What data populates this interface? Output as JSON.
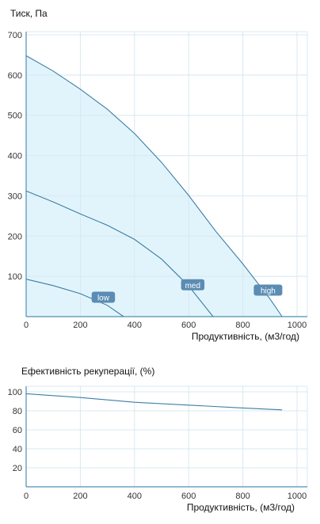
{
  "colors": {
    "curve": "#3a7fa5",
    "fill": "#e2f4fb",
    "grid": "#d8e8f0",
    "axis": "#4d8fb5",
    "label_bg": "#5b8cb3",
    "label_text": "#ffffff",
    "tick_text": "#333333"
  },
  "chart_data": [
    {
      "type": "line",
      "ylabel": "Тиск, Па",
      "xlabel": "Продуктивність, (м3/год)",
      "xlim": [
        0,
        1000
      ],
      "ylim": [
        0,
        700
      ],
      "xticks": [
        0,
        200,
        400,
        600,
        800,
        1000
      ],
      "yticks": [
        100,
        200,
        300,
        400,
        500,
        600,
        700
      ],
      "grid": true,
      "series": [
        {
          "name": "high",
          "points": [
            [
              0,
              648
            ],
            [
              100,
              610
            ],
            [
              200,
              565
            ],
            [
              300,
              515
            ],
            [
              400,
              455
            ],
            [
              500,
              383
            ],
            [
              600,
              301
            ],
            [
              700,
              212
            ],
            [
              800,
              131
            ],
            [
              900,
              44
            ],
            [
              945,
              0
            ]
          ]
        },
        {
          "name": "med",
          "points": [
            [
              0,
              312
            ],
            [
              100,
              285
            ],
            [
              200,
              255
            ],
            [
              300,
              227
            ],
            [
              400,
              192
            ],
            [
              500,
              143
            ],
            [
              600,
              76
            ],
            [
              690,
              0
            ]
          ]
        },
        {
          "name": "low",
          "points": [
            [
              0,
              93
            ],
            [
              100,
              77
            ],
            [
              200,
              57
            ],
            [
              300,
              28
            ],
            [
              360,
              0
            ]
          ]
        }
      ]
    },
    {
      "type": "line",
      "title": "Ефективність рекуперації, (%)",
      "xlabel": "Продуктивність, (м3/год)",
      "xlim": [
        0,
        1000
      ],
      "ylim": [
        0,
        110
      ],
      "xticks": [
        0,
        200,
        400,
        600,
        800,
        1000
      ],
      "yticks": [
        20,
        40,
        60,
        80,
        100
      ],
      "grid": true,
      "series": [
        {
          "points": [
            [
              0,
              98
            ],
            [
              200,
              94
            ],
            [
              400,
              89
            ],
            [
              600,
              86
            ],
            [
              800,
              83
            ],
            [
              945,
              81
            ]
          ]
        }
      ]
    }
  ]
}
